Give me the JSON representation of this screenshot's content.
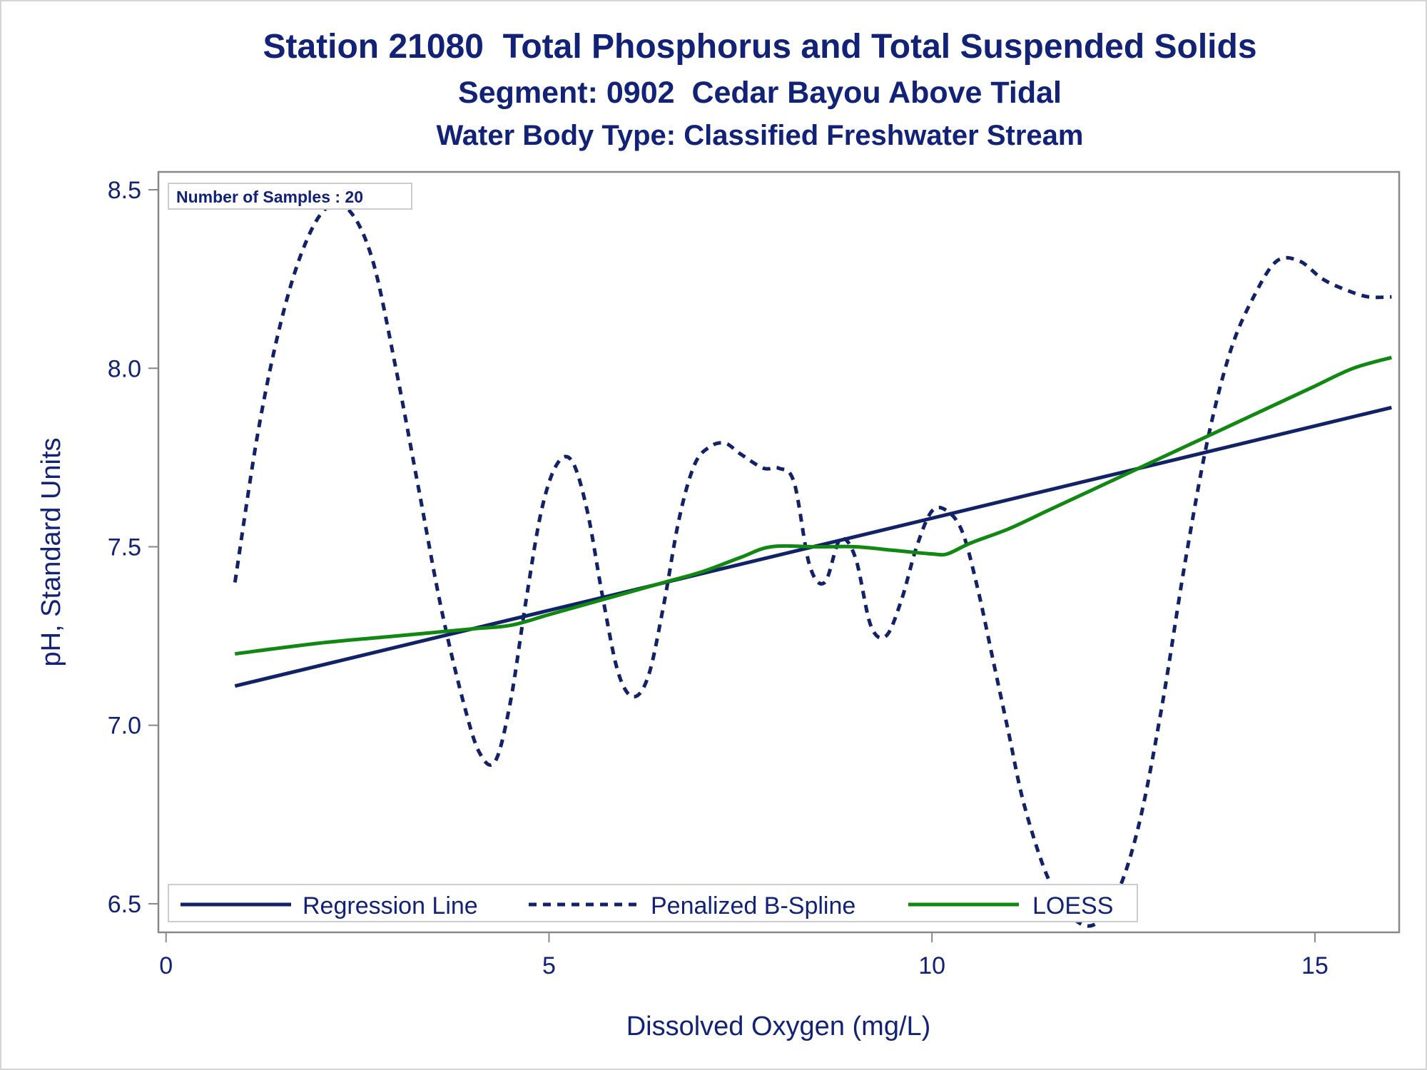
{
  "title": "Station 21080  Total Phosphorus and Total Suspended Solids",
  "subtitle1": "Segment: 0902  Cedar Bayou Above Tidal",
  "subtitle2": "Water Body Type: Classified Freshwater Stream",
  "inset_label": "Number of Samples : 20",
  "colors": {
    "navy": "#112266",
    "green": "#118811",
    "frame": "#888888",
    "text": "#112277"
  },
  "chart_data": {
    "type": "line",
    "xlabel": "Dissolved Oxygen (mg/L)",
    "ylabel": "pH, Standard Units",
    "xlim": [
      -0.1,
      16.1
    ],
    "ylim": [
      6.42,
      8.55
    ],
    "xticks": [
      0,
      5,
      10,
      15
    ],
    "xtick_labels": [
      "0",
      "5",
      "10",
      "15"
    ],
    "yticks": [
      6.5,
      7.0,
      7.5,
      8.0,
      8.5
    ],
    "ytick_labels": [
      "6.5",
      "7.0",
      "7.5",
      "8.0",
      "8.5"
    ],
    "grid": false,
    "legend_position": "bottom-left inside",
    "series": [
      {
        "name": "Regression Line",
        "style": "solid",
        "color": "#112266",
        "x": [
          0.9,
          16.0
        ],
        "y": [
          7.11,
          7.89
        ]
      },
      {
        "name": "Penalized B-Spline",
        "style": "dashed",
        "color": "#112266",
        "x": [
          0.9,
          1.2,
          1.5,
          1.8,
          2.1,
          2.4,
          2.7,
          3.0,
          3.3,
          3.6,
          3.9,
          4.1,
          4.3,
          4.5,
          4.7,
          4.9,
          5.1,
          5.3,
          5.5,
          5.7,
          5.9,
          6.1,
          6.3,
          6.5,
          6.7,
          6.9,
          7.1,
          7.3,
          7.5,
          7.8,
          8.0,
          8.2,
          8.4,
          8.6,
          8.8,
          9.0,
          9.2,
          9.4,
          9.6,
          9.8,
          10.0,
          10.2,
          10.4,
          10.6,
          10.8,
          11.0,
          11.2,
          11.5,
          11.8,
          12.1,
          12.4,
          12.7,
          13.0,
          13.3,
          13.6,
          13.9,
          14.2,
          14.5,
          14.8,
          15.1,
          15.4,
          15.7,
          16.0
        ],
        "y": [
          7.4,
          7.82,
          8.13,
          8.34,
          8.45,
          8.44,
          8.3,
          8.0,
          7.66,
          7.32,
          7.05,
          6.92,
          6.9,
          7.07,
          7.35,
          7.6,
          7.73,
          7.74,
          7.6,
          7.36,
          7.15,
          7.08,
          7.14,
          7.34,
          7.58,
          7.73,
          7.78,
          7.79,
          7.76,
          7.72,
          7.72,
          7.68,
          7.45,
          7.4,
          7.52,
          7.47,
          7.28,
          7.25,
          7.35,
          7.5,
          7.6,
          7.6,
          7.54,
          7.38,
          7.18,
          6.98,
          6.78,
          6.58,
          6.47,
          6.44,
          6.52,
          6.72,
          7.05,
          7.45,
          7.8,
          8.05,
          8.2,
          8.3,
          8.3,
          8.25,
          8.22,
          8.2,
          8.2
        ]
      },
      {
        "name": "LOESS",
        "style": "solid",
        "color": "#118811",
        "x": [
          0.9,
          2.0,
          3.0,
          4.0,
          4.5,
          5.0,
          5.5,
          6.0,
          6.5,
          7.0,
          7.5,
          7.9,
          8.5,
          9.0,
          9.5,
          10.0,
          10.2,
          10.5,
          11.0,
          11.5,
          12.0,
          12.5,
          13.0,
          13.5,
          14.0,
          14.5,
          15.0,
          15.5,
          16.0
        ],
        "y": [
          7.2,
          7.23,
          7.25,
          7.27,
          7.28,
          7.31,
          7.34,
          7.37,
          7.4,
          7.43,
          7.47,
          7.5,
          7.5,
          7.5,
          7.49,
          7.48,
          7.48,
          7.51,
          7.55,
          7.6,
          7.65,
          7.7,
          7.75,
          7.8,
          7.85,
          7.9,
          7.95,
          8.0,
          8.03
        ]
      }
    ]
  }
}
